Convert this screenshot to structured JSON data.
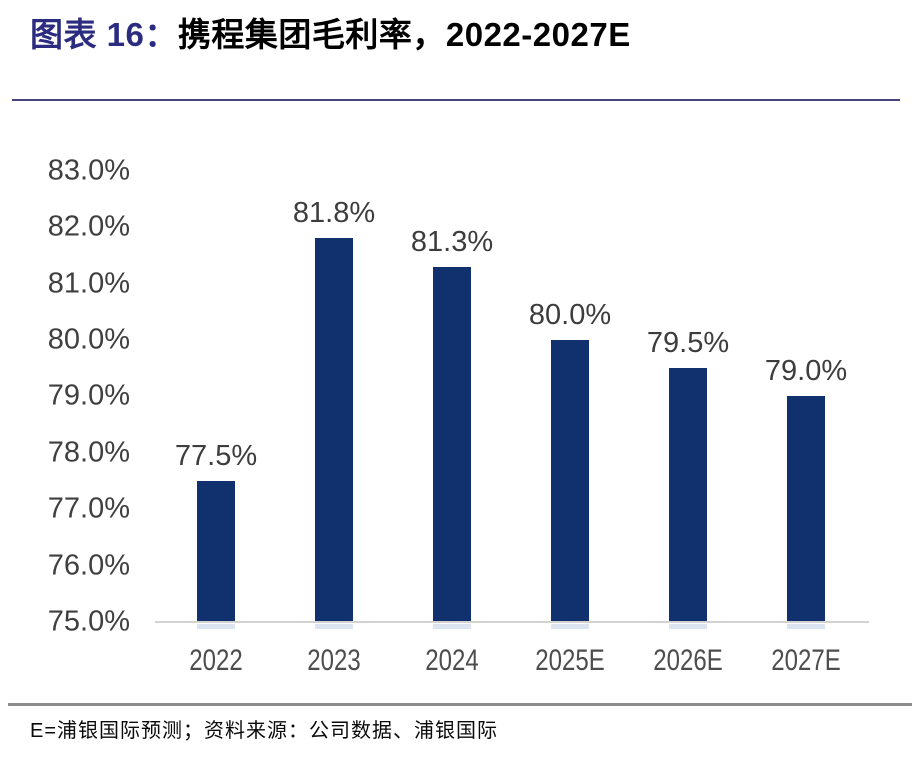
{
  "header": {
    "figure_label": "图表 16：",
    "figure_name": "携程集团毛利率，2022-2027E"
  },
  "chart_data": {
    "type": "bar",
    "title": "携程集团毛利率，2022-2027E",
    "categories": [
      "2022",
      "2023",
      "2024",
      "2025E",
      "2026E",
      "2027E"
    ],
    "values": [
      77.5,
      81.8,
      81.3,
      80.0,
      79.5,
      79.0
    ],
    "data_labels": [
      "77.5%",
      "81.8%",
      "81.3%",
      "80.0%",
      "79.5%",
      "79.0%"
    ],
    "y_tick_labels": [
      "75.0%",
      "76.0%",
      "77.0%",
      "78.0%",
      "79.0%",
      "80.0%",
      "81.0%",
      "82.0%",
      "83.0%"
    ],
    "ylim": [
      75.0,
      83.0
    ],
    "y_tick_step": 1.0,
    "xlabel": "",
    "ylabel": "",
    "grid": false,
    "legend": "none",
    "bar_color": "#11306E"
  },
  "footer": {
    "source_note": "E=浦银国际预测；资料来源：公司数据、浦银国际"
  },
  "colors": {
    "title_accent": "#2B2B80",
    "title_text": "#000000",
    "bar": "#11306E",
    "axis_labels": "#3F3F3F",
    "x_axis_labels": "#4D4D4D",
    "baseline": "#D2D2D2",
    "title_rule": "#45457B",
    "footer_rule": "#8C8C8C"
  }
}
